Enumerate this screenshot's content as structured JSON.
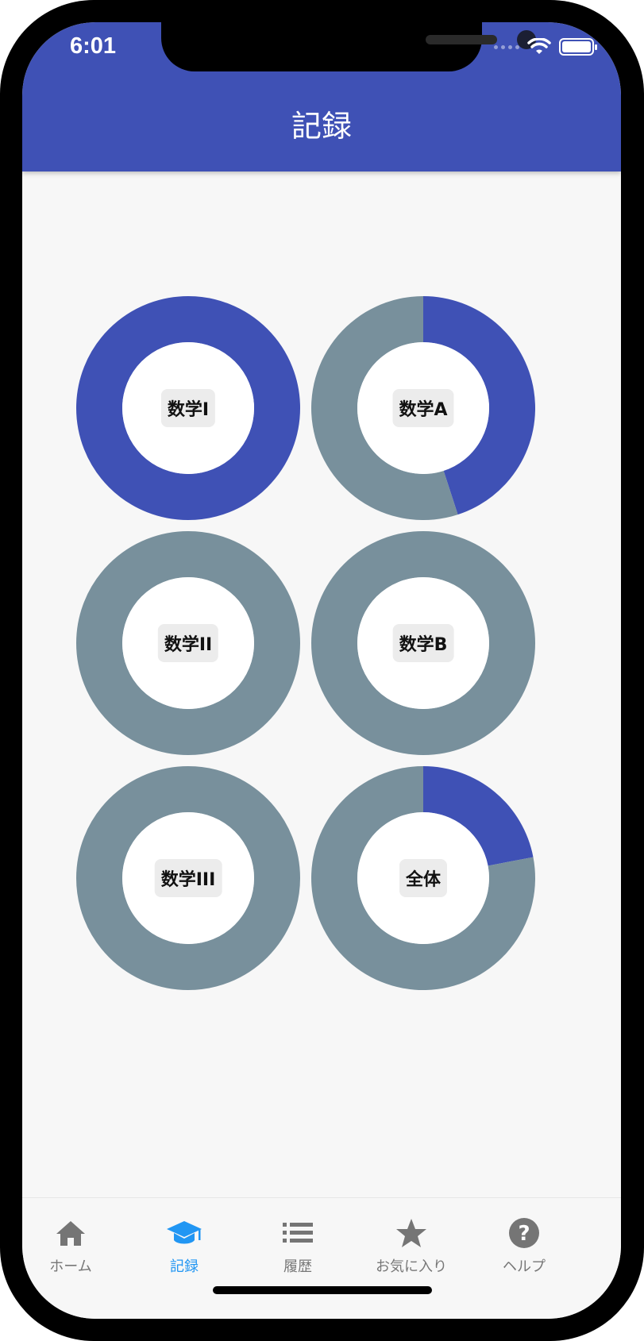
{
  "status_bar": {
    "time": "6:01"
  },
  "app_bar": {
    "title": "記録"
  },
  "colors": {
    "accent": "#3f51b5",
    "remaining": "#78909c",
    "tab_active": "#2196f3",
    "tab_inactive": "#757575"
  },
  "chart_data": {
    "type": "pie",
    "charts": [
      {
        "label": "数学I",
        "progress": 1.0
      },
      {
        "label": "数学A",
        "progress": 0.45
      },
      {
        "label": "数学II",
        "progress": 0.0
      },
      {
        "label": "数学B",
        "progress": 0.0
      },
      {
        "label": "数学III",
        "progress": 0.0
      },
      {
        "label": "全体",
        "progress": 0.22
      }
    ]
  },
  "tabs": [
    {
      "label": "ホーム",
      "icon": "home-icon",
      "active": false
    },
    {
      "label": "記録",
      "icon": "graduation-cap-icon",
      "active": true
    },
    {
      "label": "履歴",
      "icon": "list-icon",
      "active": false
    },
    {
      "label": "お気に入り",
      "icon": "star-icon",
      "active": false
    },
    {
      "label": "ヘルプ",
      "icon": "help-icon",
      "active": false
    }
  ]
}
